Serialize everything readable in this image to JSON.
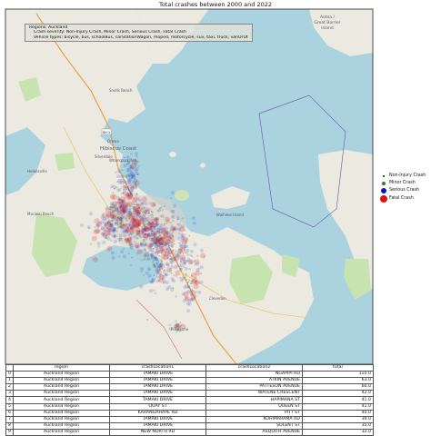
{
  "chart_data": {
    "type": "scatter",
    "title": "Total crashes between 2000 and 2022",
    "info_box": {
      "region_line": "Regions: Auckland",
      "severity_line": "Crash severity: Non-Injury Crash, Minor Crash, Serious Crash, Fatal Crash",
      "vehicle_line": "Vehicle types: bicycle, bus, schoolBus, carStationWagon, moped, motorcycle, suv, taxi, truck, vanOrUtility, vehicle"
    },
    "legend": [
      {
        "label": "Non-Injury Crash",
        "color": "#111111"
      },
      {
        "label": "Minor Crash",
        "color": "#1a8a1a"
      },
      {
        "label": "Serious Crash",
        "color": "#1010c8"
      },
      {
        "label": "Fatal Crash",
        "color": "#e01010"
      }
    ],
    "map_labels": [
      {
        "text": "Aotea / Great Barrier Island"
      },
      {
        "text": "Hibiscus Coast"
      },
      {
        "text": "Orewa"
      },
      {
        "text": "Silverdale"
      },
      {
        "text": "Whangaparāoa"
      },
      {
        "text": "Snells Beach"
      },
      {
        "text": "Helensville"
      },
      {
        "text": "Muriwai Beach"
      },
      {
        "text": "Waiheke Island"
      },
      {
        "text": "Clevedon"
      },
      {
        "text": "Pukekohe"
      }
    ],
    "table": {
      "columns": [
        "",
        "region",
        "crashLocation1",
        "crashLocation2",
        "total"
      ],
      "rows": [
        [
          "0",
          "Auckland Region",
          "TAMAKI DRIVE",
          "NGAPIPI RD",
          "110.0"
        ],
        [
          "1",
          "Auckland Region",
          "TAMAKI DRIVE",
          "ATKIN AVENUE",
          "63.0"
        ],
        [
          "2",
          "Auckland Region",
          "TAMAKI DRIVE",
          "PATTESON AVENUE",
          "60.0"
        ],
        [
          "3",
          "Auckland Region",
          "TAMAKI DRIVE",
          "WATENE CRESCENT",
          "42.0"
        ],
        [
          "4",
          "Auckland Region",
          "TAMAKI DRIVE",
          "HAPIMANA ST",
          "41.0"
        ],
        [
          "5",
          "Auckland Region",
          "QUAY ST",
          "QUEEN ST",
          "41.0"
        ],
        [
          "6",
          "Auckland Region",
          "KARANGAHAPE RD",
          "PITT ST",
          "40.0"
        ],
        [
          "7",
          "Auckland Region",
          "TAMAKI DRIVE",
          "KOHIMARAMA RD",
          "39.0"
        ],
        [
          "8",
          "Auckland Region",
          "TAMAKI DRIVE",
          "SOLENT ST",
          "35.0"
        ],
        [
          "9",
          "Auckland Region",
          "NEW NORTH RD",
          "ASQUITH AVENUE",
          "32.0"
        ]
      ]
    }
  }
}
